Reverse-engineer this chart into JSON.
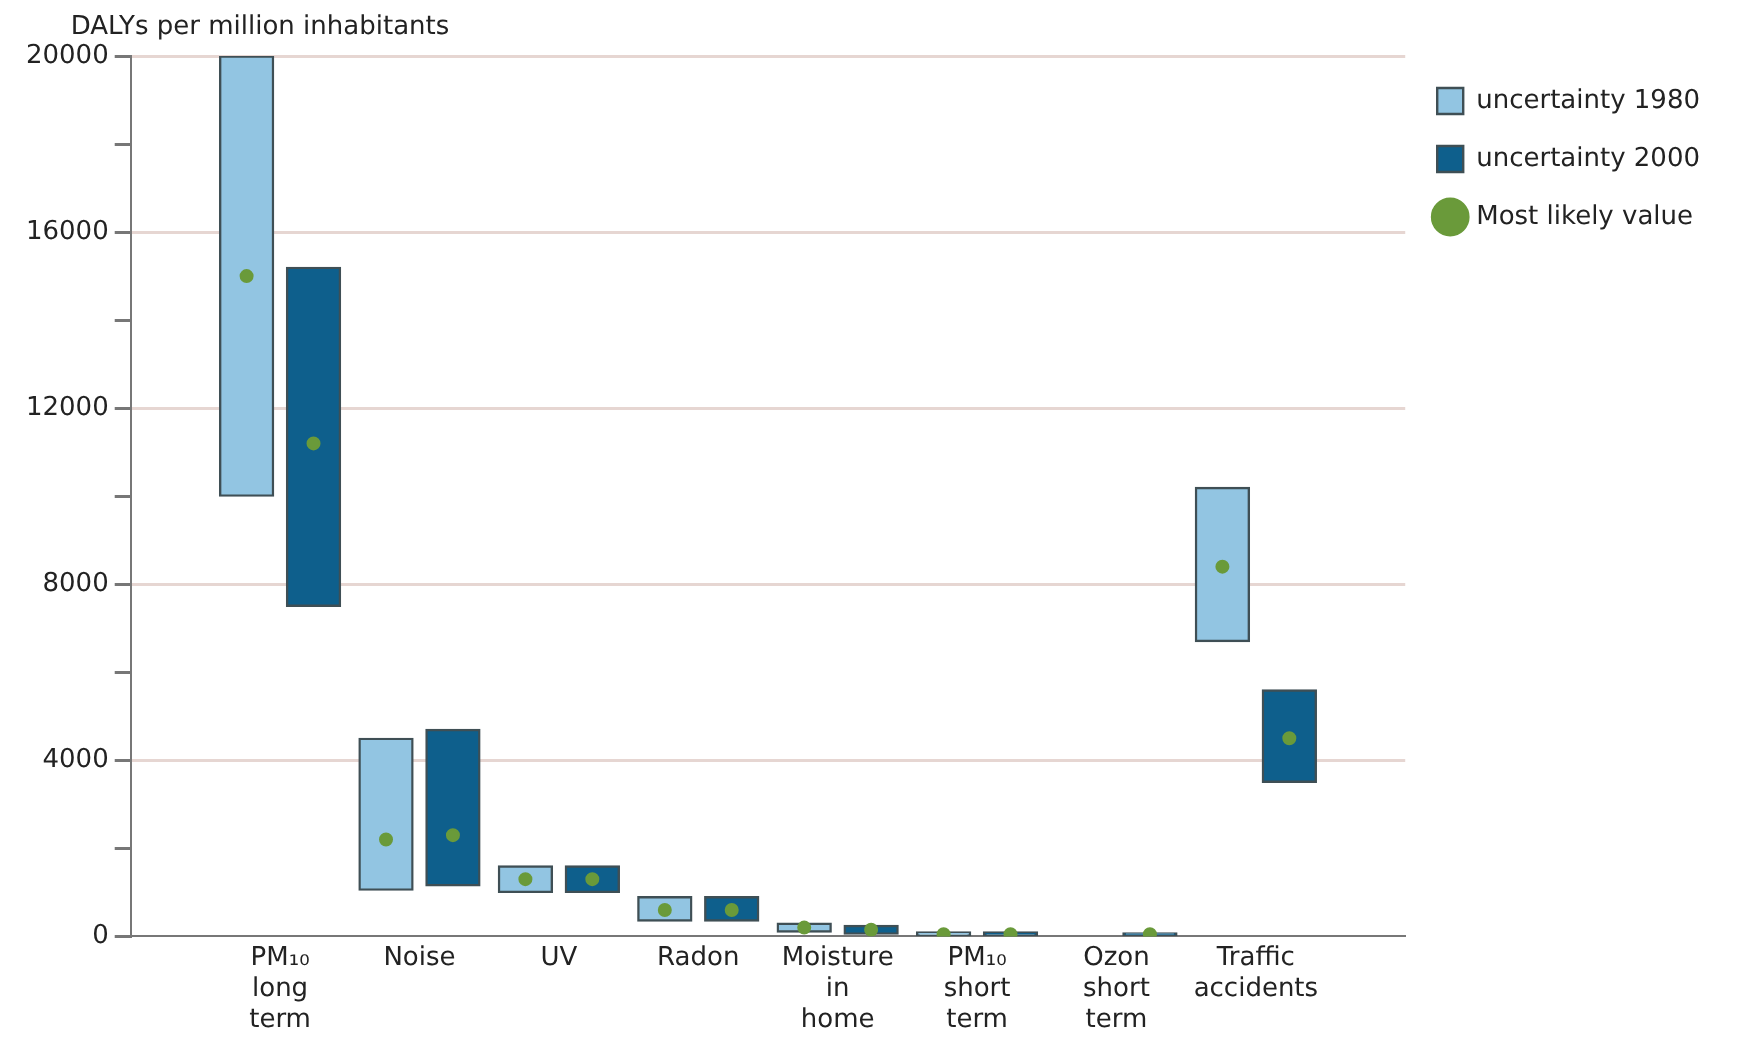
{
  "chart_data": {
    "type": "bar",
    "ylabel": "DALYs per million inhabitants",
    "categories": [
      "PM₁₀ long term",
      "Noise",
      "UV",
      "Radon",
      "Moisture in home",
      "PM₁₀ short term",
      "Ozon short term",
      "Traffic accidents"
    ],
    "series": [
      {
        "name": "uncertainty 1980",
        "color": "#92c5e2",
        "base": [
          10000,
          1050,
          1000,
          350,
          100,
          20,
          null,
          6700
        ],
        "values": [
          10000,
          3450,
          600,
          550,
          200,
          80,
          null,
          3500
        ]
      },
      {
        "name": "uncertainty 2000",
        "color": "#0e5f8c",
        "base": [
          7500,
          1150,
          1000,
          350,
          50,
          20,
          20,
          3500
        ],
        "values": [
          7700,
          3550,
          600,
          550,
          200,
          80,
          60,
          2100
        ]
      },
      {
        "name": "Most likely value",
        "type": "scatter",
        "color": "#6a9a3a",
        "x": [
          "PM₁₀ long term",
          "Noise",
          "UV",
          "Radon",
          "Moisture in home",
          "PM₁₀ short term",
          "Ozon short term",
          "Traffic accidents"
        ],
        "values": [
          15000,
          2200,
          1300,
          600,
          200,
          50,
          null,
          8400
        ]
      },
      {
        "type": "scatter",
        "color": "#6a9a3a",
        "x": [
          "PM₁₀ long term",
          "Noise",
          "UV",
          "Radon",
          "Moisture in home",
          "PM₁₀ short term",
          "Ozon short term",
          "Traffic accidents"
        ],
        "values": [
          11200,
          2300,
          1300,
          600,
          150,
          50,
          50,
          4500
        ]
      }
    ],
    "ylim": [
      0,
      20000
    ],
    "yticks": [
      0,
      {
        "value": 2000,
        "label": null
      },
      4000,
      {
        "value": 6000,
        "label": null
      },
      8000,
      {
        "value": 10000,
        "label": null
      },
      12000,
      {
        "value": 14000,
        "label": null
      },
      16000,
      {
        "value": 18000,
        "label": null
      },
      20000
    ],
    "grid": "y",
    "legend": "top right",
    "marker": "circle"
  }
}
